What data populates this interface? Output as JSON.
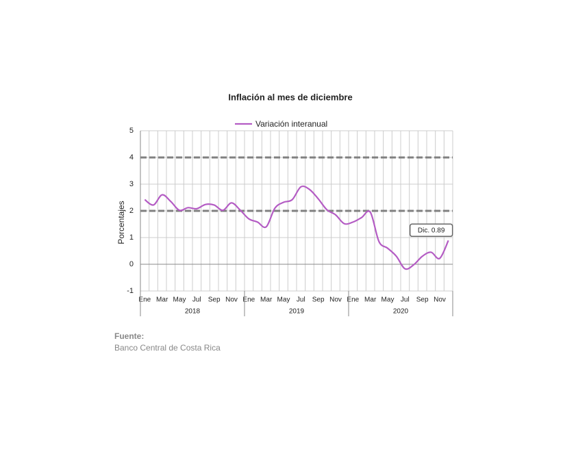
{
  "chart_data": {
    "type": "line",
    "title": "Inflación al mes de diciembre",
    "y_label": "Porcentajes",
    "categories": [
      "Ene",
      null,
      "Mar",
      null,
      "May",
      null,
      "Jul",
      null,
      "Sep",
      null,
      "Nov",
      null,
      "Ene",
      null,
      "Mar",
      null,
      "May",
      null,
      "Jul",
      null,
      "Sep",
      null,
      "Nov",
      null,
      "Ene",
      null,
      "Mar",
      null,
      "May",
      null,
      "Jul",
      null,
      "Sep",
      null,
      "Nov",
      null
    ],
    "groups": [
      "2018",
      "2019",
      "2020"
    ],
    "series": [
      {
        "name": "Variación interanual",
        "color": "#b45cc4",
        "values": [
          2.42,
          2.22,
          2.6,
          2.35,
          2.02,
          2.12,
          2.08,
          2.24,
          2.22,
          2.02,
          2.3,
          2.03,
          1.7,
          1.58,
          1.4,
          2.1,
          2.32,
          2.42,
          2.9,
          2.8,
          2.45,
          2.04,
          1.85,
          1.52,
          1.58,
          1.75,
          1.95,
          0.85,
          0.6,
          0.3,
          -0.17,
          -0.02,
          0.3,
          0.45,
          0.22,
          0.89
        ]
      }
    ],
    "reference_lines": [
      {
        "value": 2
      },
      {
        "value": 4
      }
    ],
    "annotation": "Dic. 0.89",
    "ylim": [
      -1,
      5
    ],
    "yticks": [
      -1,
      0,
      1,
      2,
      3,
      4,
      5
    ],
    "grid": true
  },
  "source": {
    "label": "Fuente:",
    "text": "Banco Central de Costa Rica"
  }
}
